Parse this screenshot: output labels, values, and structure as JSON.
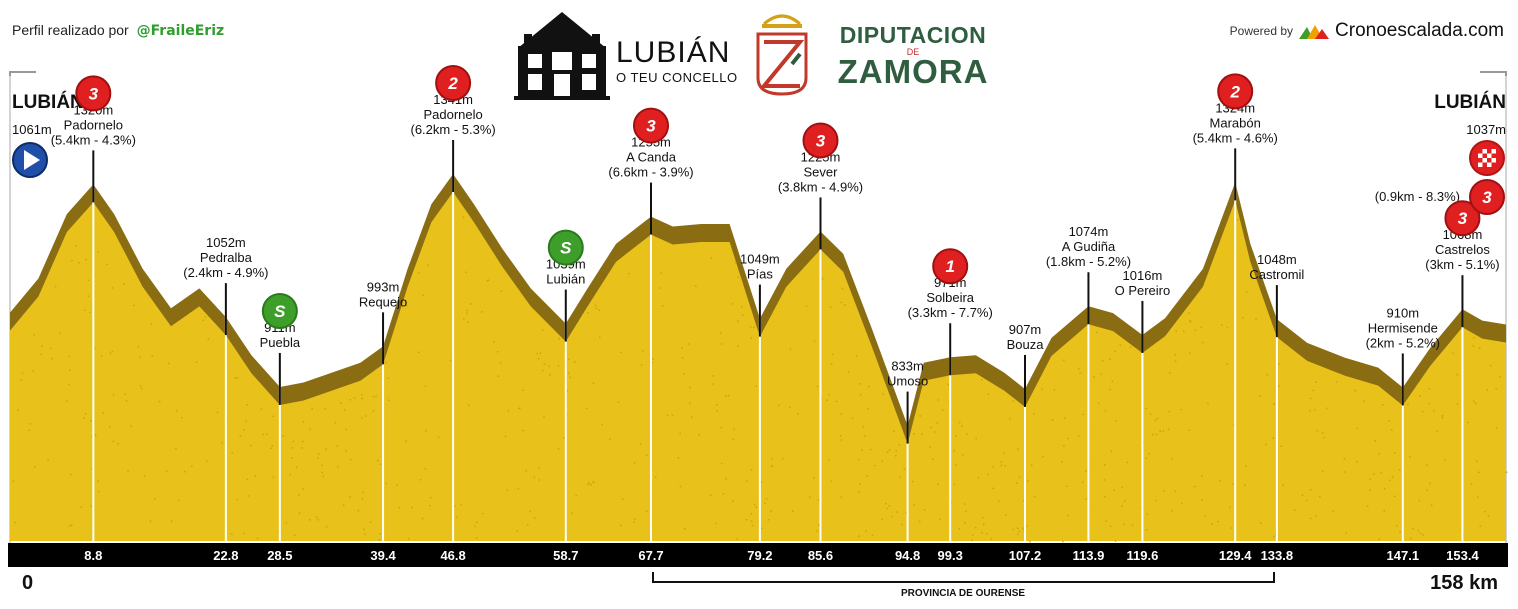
{
  "header": {
    "credit_prefix": "Perfil realizado por",
    "credit_handle": "@FraileEriz",
    "logo_lubian_title": "LUBIÁN",
    "logo_lubian_subtitle": "O TEU CONCELLO",
    "logo_dip_line1": "DIPUTACION",
    "logo_dip_line2": "DE",
    "logo_dip_line3": "ZAMORA",
    "powered_label": "Powered by",
    "powered_brand": "Cronoescalada.com"
  },
  "start": {
    "name": "LUBIÁN",
    "elevation": "1061m"
  },
  "finish": {
    "name": "LUBIÁN",
    "elevation": "1037m",
    "climb_detail": "(0.9km - 8.3%)",
    "category": "3"
  },
  "axis": {
    "start_label": "0",
    "end_label": "158 km"
  },
  "province_label": "PROVINCIA DE OURENSE",
  "colors": {
    "terrain": "#e8c21a",
    "terrain_dark": "#8a6d12",
    "km_band": "#000000",
    "cat3": "#e02020",
    "cat2": "#e02020",
    "cat1": "#e02020",
    "sprint": "#3e9e2a"
  },
  "chart_data": {
    "type": "area",
    "xlabel": "",
    "ylabel": "",
    "xlim": [
      0,
      158
    ],
    "ylim": [
      600,
      1450
    ],
    "profile": [
      [
        0,
        1061
      ],
      [
        3,
        1130
      ],
      [
        6,
        1260
      ],
      [
        8.8,
        1320
      ],
      [
        11,
        1260
      ],
      [
        14,
        1150
      ],
      [
        17,
        1070
      ],
      [
        20,
        1110
      ],
      [
        22.8,
        1052
      ],
      [
        25.5,
        975
      ],
      [
        28.5,
        911
      ],
      [
        31,
        920
      ],
      [
        34,
        940
      ],
      [
        37,
        960
      ],
      [
        39.4,
        993
      ],
      [
        42,
        1150
      ],
      [
        44.5,
        1280
      ],
      [
        46.8,
        1341
      ],
      [
        49,
        1280
      ],
      [
        52,
        1190
      ],
      [
        55,
        1110
      ],
      [
        58.7,
        1039
      ],
      [
        61,
        1110
      ],
      [
        64,
        1200
      ],
      [
        67.7,
        1255
      ],
      [
        70,
        1235
      ],
      [
        73,
        1240
      ],
      [
        76,
        1240
      ],
      [
        79.2,
        1049
      ],
      [
        82,
        1150
      ],
      [
        85.6,
        1225
      ],
      [
        88,
        1180
      ],
      [
        91,
        1030
      ],
      [
        94.8,
        833
      ],
      [
        96.5,
        960
      ],
      [
        99.3,
        971
      ],
      [
        102,
        975
      ],
      [
        105,
        940
      ],
      [
        107.2,
        907
      ],
      [
        110,
        1010
      ],
      [
        113.9,
        1074
      ],
      [
        116.5,
        1060
      ],
      [
        119.6,
        1016
      ],
      [
        122,
        1050
      ],
      [
        126,
        1150
      ],
      [
        129.4,
        1324
      ],
      [
        131,
        1200
      ],
      [
        133.8,
        1048
      ],
      [
        137,
        1000
      ],
      [
        141,
        970
      ],
      [
        144.5,
        950
      ],
      [
        147.1,
        910
      ],
      [
        150,
        990
      ],
      [
        153.4,
        1068
      ],
      [
        155.5,
        1045
      ],
      [
        158,
        1037
      ]
    ],
    "points": [
      {
        "km": "8.8",
        "x": 8.8,
        "elev": 1320,
        "name": "Padornelo",
        "elev_label": "1320m",
        "detail": "(5.4km - 4.3%)",
        "marker": "3"
      },
      {
        "km": "22.8",
        "x": 22.8,
        "elev": 1052,
        "name": "Pedralba",
        "elev_label": "1052m",
        "detail": "(2.4km - 4.9%)",
        "marker": ""
      },
      {
        "km": "28.5",
        "x": 28.5,
        "elev": 911,
        "name": "Puebla",
        "elev_label": "911m",
        "detail": "",
        "marker": "S"
      },
      {
        "km": "39.4",
        "x": 39.4,
        "elev": 993,
        "name": "Requejo",
        "elev_label": "993m",
        "detail": "",
        "marker": ""
      },
      {
        "km": "46.8",
        "x": 46.8,
        "elev": 1341,
        "name": "Padornelo",
        "elev_label": "1341m",
        "detail": "(6.2km - 5.3%)",
        "marker": "2"
      },
      {
        "km": "58.7",
        "x": 58.7,
        "elev": 1039,
        "name": "Lubián",
        "elev_label": "1039m",
        "detail": "",
        "marker": "S"
      },
      {
        "km": "67.7",
        "x": 67.7,
        "elev": 1255,
        "name": "A Canda",
        "elev_label": "1255m",
        "detail": "(6.6km - 3.9%)",
        "marker": "3"
      },
      {
        "km": "79.2",
        "x": 79.2,
        "elev": 1049,
        "name": "Pías",
        "elev_label": "1049m",
        "detail": "",
        "marker": ""
      },
      {
        "km": "85.6",
        "x": 85.6,
        "elev": 1225,
        "name": "Sever",
        "elev_label": "1225m",
        "detail": "(3.8km - 4.9%)",
        "marker": "3"
      },
      {
        "km": "94.8",
        "x": 94.8,
        "elev": 833,
        "name": "Umoso",
        "elev_label": "833m",
        "detail": "",
        "marker": ""
      },
      {
        "km": "99.3",
        "x": 99.3,
        "elev": 971,
        "name": "Solbeira",
        "elev_label": "971m",
        "detail": "(3.3km - 7.7%)",
        "marker": "1"
      },
      {
        "km": "107.2",
        "x": 107.2,
        "elev": 907,
        "name": "Bouza",
        "elev_label": "907m",
        "detail": "",
        "marker": ""
      },
      {
        "km": "113.9",
        "x": 113.9,
        "elev": 1074,
        "name": "A Gudiña",
        "elev_label": "1074m",
        "detail": "(1.8km - 5.2%)",
        "marker": ""
      },
      {
        "km": "119.6",
        "x": 119.6,
        "elev": 1016,
        "name": "O Pereiro",
        "elev_label": "1016m",
        "detail": "",
        "marker": ""
      },
      {
        "km": "129.4",
        "x": 129.4,
        "elev": 1324,
        "name": "Marabón",
        "elev_label": "1324m",
        "detail": "(5.4km - 4.6%)",
        "marker": "2"
      },
      {
        "km": "133.8",
        "x": 133.8,
        "elev": 1048,
        "name": "Castromil",
        "elev_label": "1048m",
        "detail": "",
        "marker": ""
      },
      {
        "km": "147.1",
        "x": 147.1,
        "elev": 910,
        "name": "Hermisende",
        "elev_label": "910m",
        "detail": "(2km - 5.2%)",
        "marker": ""
      },
      {
        "km": "153.4",
        "x": 153.4,
        "elev": 1068,
        "name": "Castrelos",
        "elev_label": "1068m",
        "detail": "(3km - 5.1%)",
        "marker": "3"
      }
    ],
    "province_range": [
      67.7,
      133.8
    ]
  }
}
